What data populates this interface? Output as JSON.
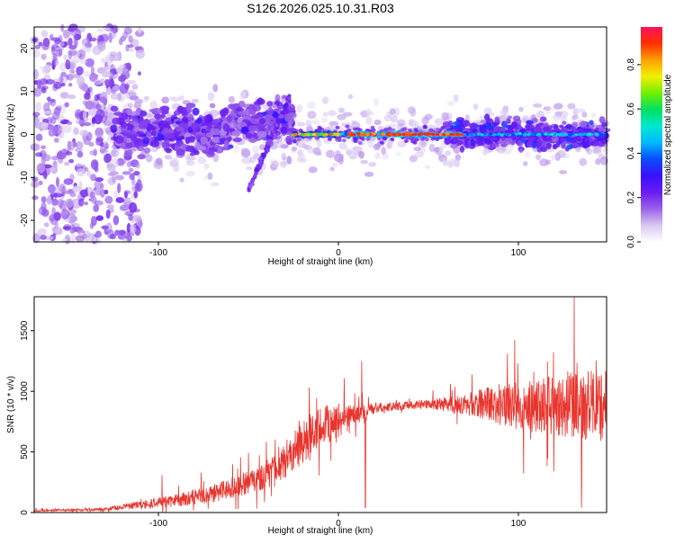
{
  "title": "S126.2026.025.10.31.R03",
  "chart_data": [
    {
      "type": "heatmap",
      "title": "S126.2026.025.10.31.R03",
      "xlabel": "Height of straight line (km)",
      "ylabel": "Frequency (Hz)",
      "xlim": [
        -169,
        149
      ],
      "ylim": [
        -25,
        25
      ],
      "xticks": [
        -100,
        0,
        100
      ],
      "yticks": [
        -20,
        -10,
        0,
        10,
        20
      ],
      "colorbar": {
        "label": "Normalized spectral amplitude",
        "range": [
          0.0,
          0.97
        ],
        "ticks": [
          0.0,
          0.2,
          0.4,
          0.6,
          0.8
        ],
        "tick_labels": [
          "0.0",
          "0.2",
          "0.4",
          "0.6",
          "0.8"
        ],
        "colormap": [
          "#ffffff",
          "#d9c8f0",
          "#9a62e8",
          "#6a1cf0",
          "#3a10ff",
          "#0a4cff",
          "#00b8ff",
          "#00e8d0",
          "#00e060",
          "#70f000",
          "#f0f000",
          "#ffa000",
          "#ff3000",
          "#ff1060"
        ]
      },
      "features": {
        "central_ridge": {
          "x_range": [
            -25,
            149
          ],
          "frequency": 0,
          "peak_amplitude": 0.95,
          "peak_x_range": [
            5,
            70
          ]
        },
        "diagonal_streak": {
          "x_from": -50,
          "y_from": -13,
          "x_to": -27,
          "y_to": 9
        },
        "noisy_region": {
          "x_range": [
            -169,
            -120
          ],
          "frequency_range": [
            -25,
            25
          ]
        }
      }
    },
    {
      "type": "line",
      "xlabel": "Height of straight line (km)",
      "ylabel": "SNR (10 * v/v)",
      "xlim": [
        -169,
        149
      ],
      "ylim": [
        0,
        1780
      ],
      "xticks": [
        -100,
        0,
        100
      ],
      "yticks": [
        0,
        500,
        1000,
        1500
      ],
      "series": [
        {
          "name": "SNR",
          "color": "#e8352e",
          "x": [
            -169,
            -160,
            -150,
            -140,
            -130,
            -120,
            -110,
            -100,
            -90,
            -80,
            -70,
            -60,
            -50,
            -40,
            -30,
            -20,
            -10,
            0,
            10,
            20,
            30,
            40,
            50,
            60,
            70,
            80,
            90,
            100,
            110,
            120,
            130,
            140,
            149
          ],
          "values": [
            15,
            18,
            20,
            22,
            28,
            45,
            60,
            80,
            95,
            120,
            150,
            190,
            240,
            300,
            420,
            560,
            680,
            740,
            800,
            855,
            870,
            880,
            890,
            885,
            880,
            885,
            875,
            860,
            850,
            860,
            870,
            850,
            840
          ],
          "noise_amplitude": [
            8,
            8,
            8,
            10,
            14,
            25,
            35,
            45,
            55,
            65,
            75,
            85,
            100,
            120,
            160,
            180,
            180,
            150,
            80,
            45,
            35,
            35,
            40,
            60,
            90,
            130,
            170,
            200,
            220,
            250,
            280,
            290,
            300
          ]
        }
      ],
      "notable_spikes": [
        {
          "x": -98,
          "y": 310
        },
        {
          "x": 13,
          "y": 1250
        },
        {
          "x": 15,
          "y": 40
        },
        {
          "x": 131,
          "y": 1780
        },
        {
          "x": 135,
          "y": 40
        }
      ]
    }
  ]
}
